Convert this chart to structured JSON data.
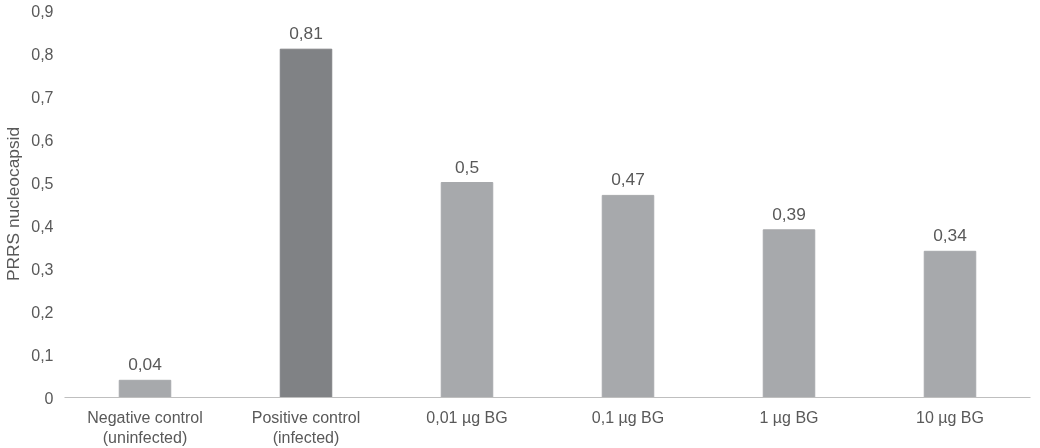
{
  "chart_data": {
    "type": "bar",
    "ylabel": "PRRS nucleocapsid",
    "categories": [
      "Negative control\n(uninfected)",
      "Positive control\n(infected)",
      "0,01 µg BG",
      "0,1 µg BG",
      "1 µg BG",
      "10 µg BG"
    ],
    "values": [
      0.04,
      0.81,
      0.5,
      0.47,
      0.39,
      0.34
    ],
    "colors": [
      "#a7a9ac",
      "#808285",
      "#a7a9ac",
      "#a7a9ac",
      "#a7a9ac",
      "#a7a9ac"
    ],
    "value_labels": [
      "0,04",
      "0,81",
      "0,5",
      "0,47",
      "0,39",
      "0,34"
    ],
    "ylim": [
      0,
      0.9
    ],
    "yticks": [
      {
        "value": 0,
        "label": "0"
      },
      {
        "value": 0.1,
        "label": "0,1"
      },
      {
        "value": 0.2,
        "label": "0,2"
      },
      {
        "value": 0.3,
        "label": "0,3"
      },
      {
        "value": 0.4,
        "label": "0,4"
      },
      {
        "value": 0.5,
        "label": "0,5"
      },
      {
        "value": 0.6,
        "label": "0,6"
      },
      {
        "value": 0.7,
        "label": "0,7"
      },
      {
        "value": 0.8,
        "label": "0,8"
      },
      {
        "value": 0.9,
        "label": "0,9"
      }
    ],
    "grid": false
  }
}
